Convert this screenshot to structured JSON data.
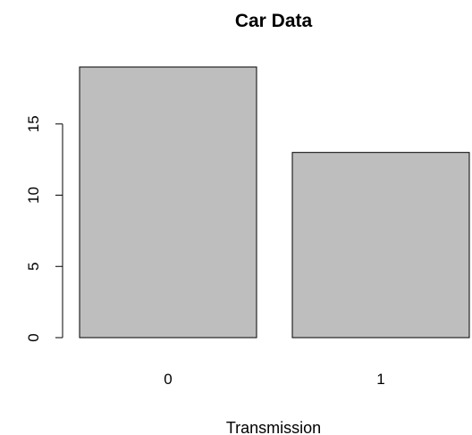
{
  "chart_data": {
    "type": "bar",
    "title": "Car Data",
    "xlabel": "Transmission",
    "ylabel": "",
    "categories": [
      "0",
      "1"
    ],
    "values": [
      19,
      13
    ],
    "ylim": [
      0,
      19
    ],
    "yticks": [
      0,
      5,
      10,
      15
    ],
    "grid": false,
    "bar_color": "#bebebe",
    "bar_border_color": "#000000"
  }
}
